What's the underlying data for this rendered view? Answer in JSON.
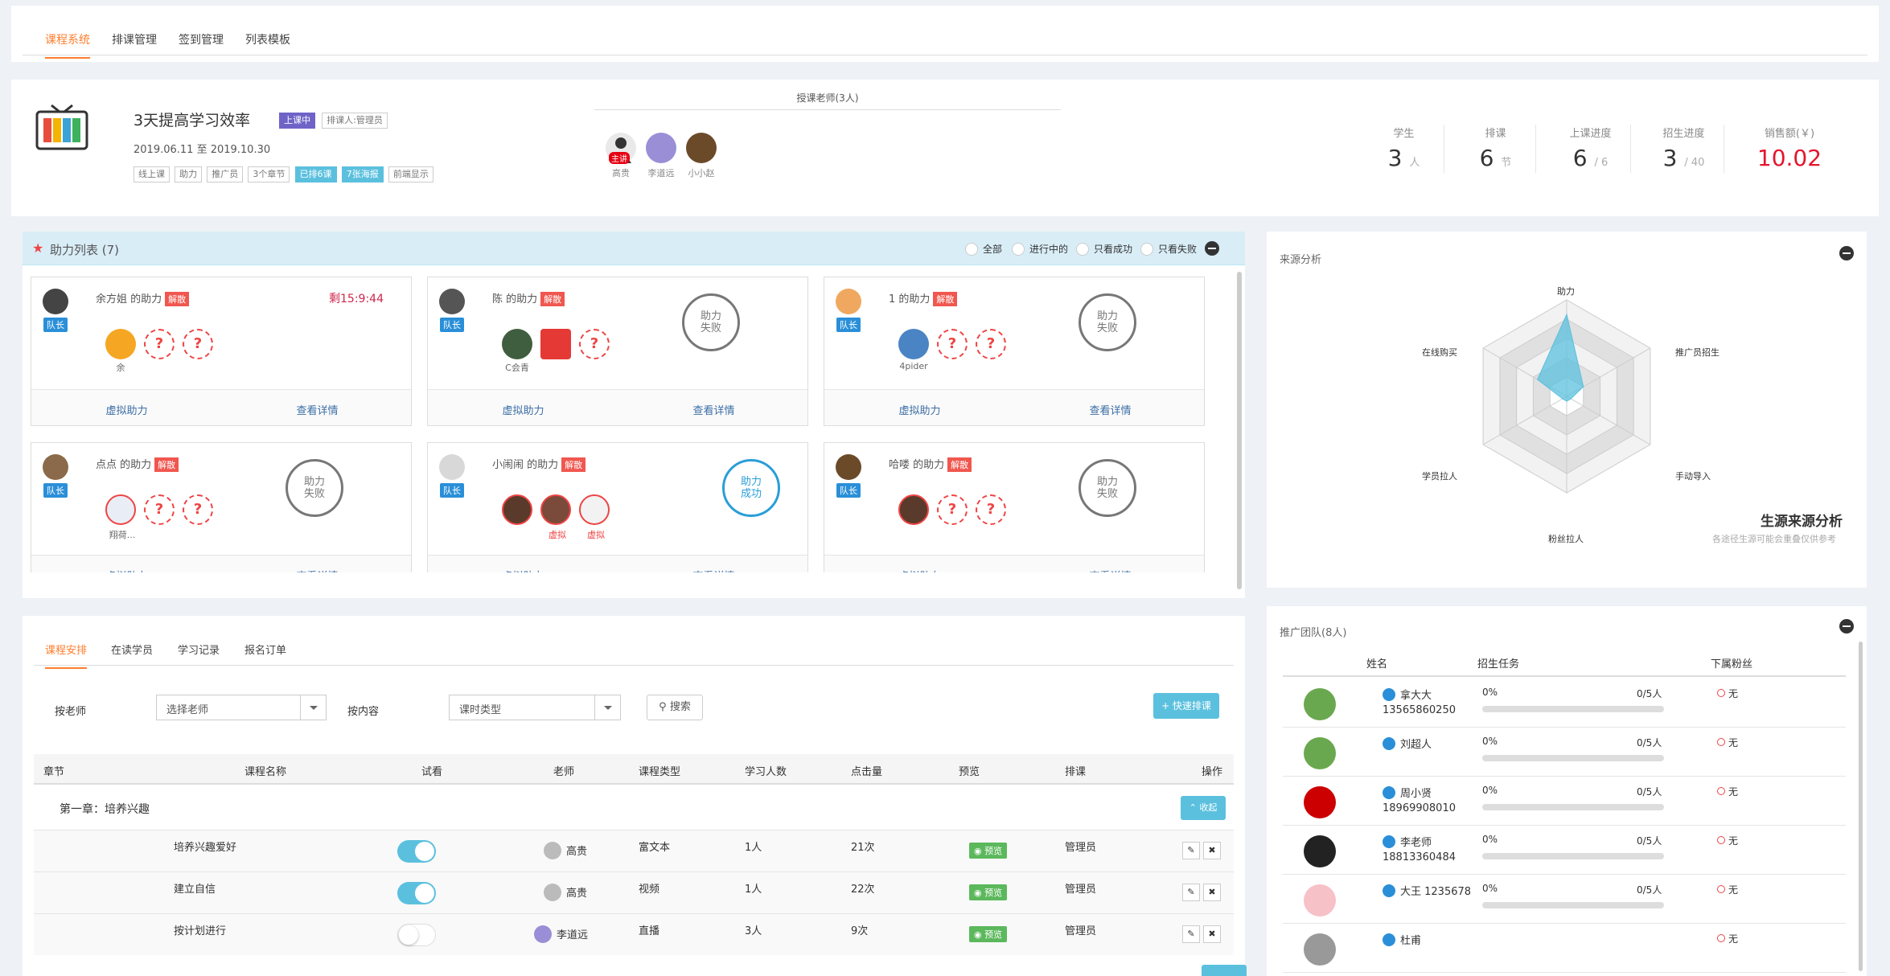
{
  "top_tabs": [
    "课程系统",
    "排课管理",
    "签到管理",
    "列表模板"
  ],
  "course": {
    "title": "3天提高学习效率",
    "status": "上课中",
    "manager": "排课人:管理员",
    "dates": "2019.06.11 至 2019.10.30",
    "tags": [
      "线上课",
      "助力",
      "推广员",
      "3个章节",
      "已排6课",
      "7张海报",
      "前端显示"
    ],
    "teachers_title": "授课老师(3人)",
    "main_badge": "主讲",
    "teachers": [
      "高贵",
      "李道远",
      "小小赵"
    ]
  },
  "stats": [
    {
      "label": "学生",
      "value": "3",
      "unit": "人"
    },
    {
      "label": "排课",
      "value": "6",
      "unit": "节"
    },
    {
      "label": "上课进度",
      "value": "6",
      "unit": "/ 6"
    },
    {
      "label": "招生进度",
      "value": "3",
      "unit": "/ 40"
    },
    {
      "label": "销售额(￥)",
      "value": "10.02",
      "unit": ""
    }
  ],
  "assist": {
    "title": "助力列表 (7)",
    "filters": [
      "全部",
      "进行中的",
      "只看成功",
      "只看失败"
    ],
    "leader_badge": "队长",
    "dissolve": "解散",
    "footer": [
      "虚拟助力",
      "查看详情"
    ],
    "q": "?",
    "cards": [
      {
        "name": "余方姐 的助力",
        "timer": "剩15:9:44",
        "stamp": "",
        "members": [
          "余"
        ]
      },
      {
        "name": "陈 的助力",
        "timer": "",
        "stamp": "助力失败",
        "members": [
          "C会青",
          ""
        ]
      },
      {
        "name": "1 的助力",
        "timer": "",
        "stamp": "助力失败",
        "members": [
          "4pider"
        ]
      },
      {
        "name": "点点 的助力",
        "timer": "",
        "stamp": "助力失败",
        "members": [
          "翔荷..."
        ]
      },
      {
        "name": "小闹闹 的助力",
        "timer": "",
        "stamp": "助力成功",
        "members": [
          "",
          "虚拟",
          "虚拟"
        ]
      },
      {
        "name": "哈喽 的助力",
        "timer": "",
        "stamp": "助力失败",
        "members": [
          ""
        ]
      }
    ]
  },
  "source": {
    "title": "来源分析",
    "axes": [
      "助力",
      "推广员招生",
      "手动导入",
      "粉丝拉人",
      "学员拉人",
      "在线购买"
    ],
    "values": [
      0.85,
      0.2,
      0.05,
      0.05,
      0.05,
      0.35
    ],
    "caption": "生源来源分析",
    "sub": "各途径生源可能会重叠仅供参考"
  },
  "schedule": {
    "tabs": [
      "课程安排",
      "在读学员",
      "学习记录",
      "报名订单"
    ],
    "filter_teacher_label": "按老师",
    "filter_teacher": "选择老师",
    "filter_content_label": "按内容",
    "filter_content": "课时类型",
    "search": "搜索",
    "quick": "+ 快速排课",
    "headers": [
      "章节",
      "课程名称",
      "试看",
      "老师",
      "课程类型",
      "学习人数",
      "点击量",
      "预览",
      "排课",
      "操作"
    ],
    "chapter1": "第一章：培养兴趣",
    "collapse": "收起",
    "preview": "预览",
    "rows": [
      {
        "name": "培养兴趣爱好",
        "trial": true,
        "teacher": "高贵",
        "type": "富文本",
        "students": "1人",
        "clicks": "21次",
        "sched": "管理员"
      },
      {
        "name": "建立自信",
        "trial": true,
        "teacher": "高贵",
        "type": "视频",
        "students": "1人",
        "clicks": "22次",
        "sched": "管理员"
      },
      {
        "name": "按计划进行",
        "trial": false,
        "teacher": "李道远",
        "type": "直播",
        "students": "3人",
        "clicks": "9次",
        "sched": "管理员"
      }
    ]
  },
  "team": {
    "title": "推广团队(8人)",
    "headers": [
      "姓名",
      "招生任务",
      "下属粉丝"
    ],
    "members": [
      {
        "name": "拿大大",
        "phone": "13565860250",
        "pct": "0%",
        "count": "0/5人",
        "progress": 0,
        "fans": "无"
      },
      {
        "name": "刘超人",
        "phone": "",
        "pct": "0%",
        "count": "0/5人",
        "progress": 0,
        "fans": "无"
      },
      {
        "name": "周小贤",
        "phone": "18969908010",
        "pct": "0%",
        "count": "0/5人",
        "progress": 0,
        "fans": "无"
      },
      {
        "name": "李老师",
        "phone": "18813360484",
        "pct": "0%",
        "count": "0/5人",
        "progress": 0,
        "fans": "无"
      },
      {
        "name": "大王 1235678",
        "phone": "",
        "pct": "0%",
        "count": "0/5人",
        "progress": 0,
        "fans": "无"
      },
      {
        "name": "杜甫",
        "phone": "",
        "pct": "",
        "count": "",
        "progress": 0,
        "fans": "无"
      }
    ]
  },
  "colors": {
    "accent": "#ff7e2d",
    "info": "#5bc0de",
    "danger": "#f0574f",
    "sales": "#e4152d"
  }
}
